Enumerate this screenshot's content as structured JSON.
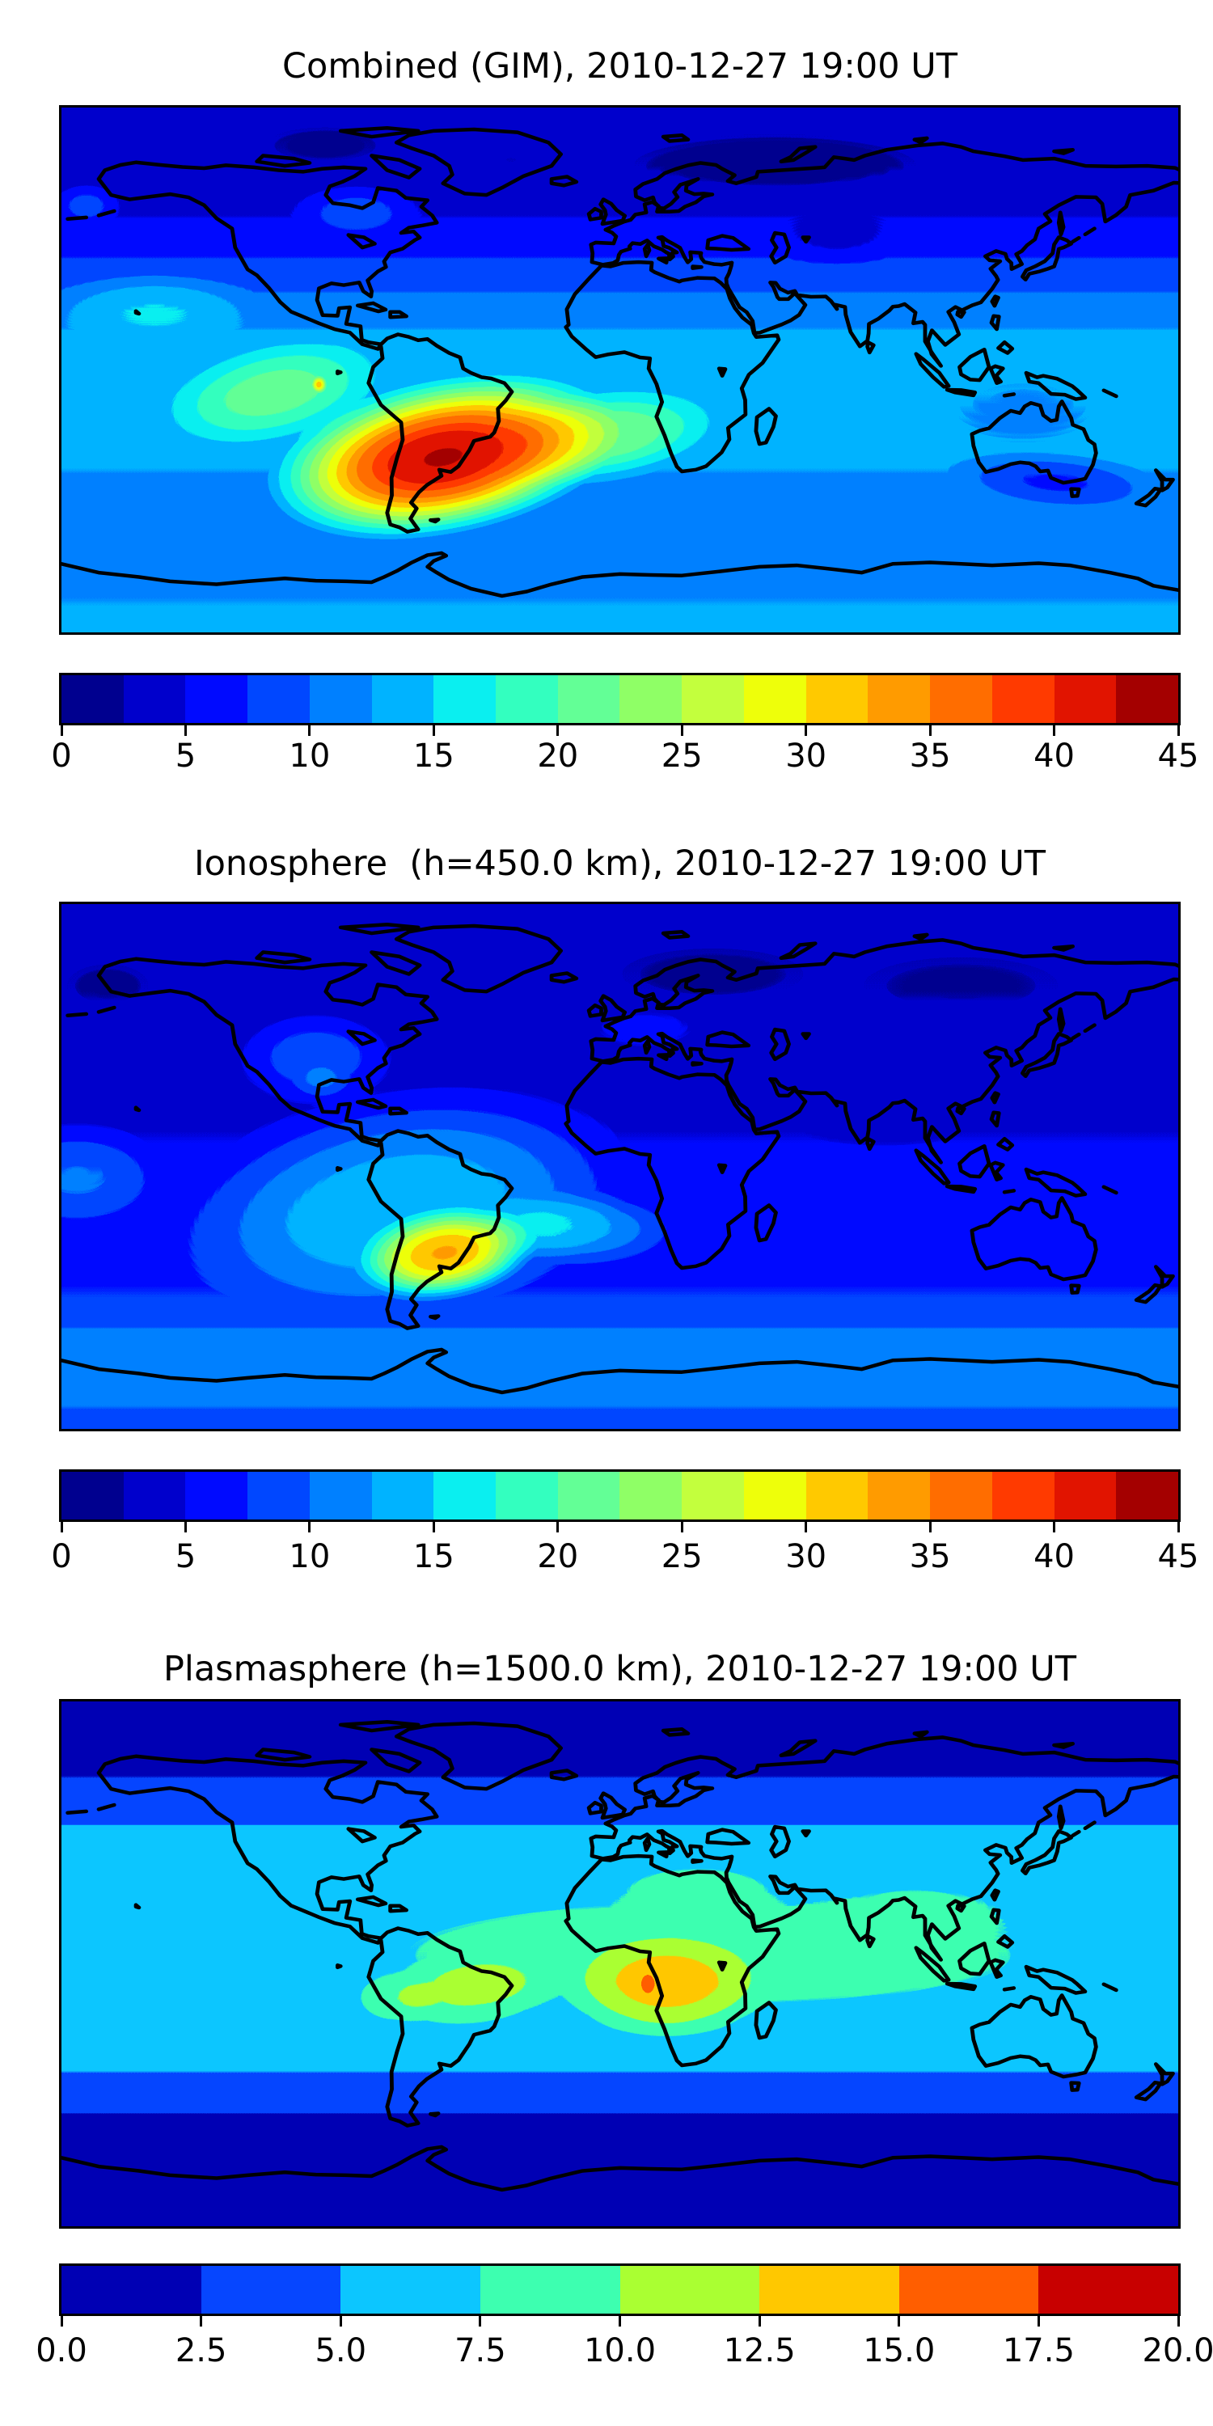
{
  "figure": {
    "background": "#ffffff",
    "border_color": "#000000",
    "coastline_color": "#000000"
  },
  "chart_data": [
    {
      "type": "heatmap",
      "subtype": "filled-contour-world-map",
      "title": "Combined (GIM), 2010-12-27 19:00 UT",
      "projection": "equirectangular, lon -180..180, lat -90..90",
      "vmin": 0,
      "vmax": 45,
      "level_step": 2.5,
      "colorbar": {
        "ticks": [
          0,
          5,
          10,
          15,
          20,
          25,
          30,
          35,
          40,
          45
        ],
        "tick_labels": [
          "0",
          "5",
          "10",
          "15",
          "20",
          "25",
          "30",
          "35",
          "40",
          "45"
        ],
        "colors": [
          "#00008F",
          "#0000CC",
          "#000AFF",
          "#0047FF",
          "#0080FF",
          "#00B3FF",
          "#0AEFF0",
          "#33FFBF",
          "#63FF96",
          "#8FFF66",
          "#C3FF3D",
          "#EEFF0A",
          "#FFC900",
          "#FF9B00",
          "#FF6D00",
          "#FF3A00",
          "#E11400",
          "#A40000"
        ]
      },
      "peak": {
        "lon": -57,
        "lat": -30,
        "value": 44,
        "note": "dark-red equatorial-anomaly maximum over southern South America"
      },
      "field": {
        "lat_profile": [
          [
            90,
            2.8
          ],
          [
            70,
            3.2
          ],
          [
            55,
            4.5
          ],
          [
            38,
            7.5
          ],
          [
            22,
            11
          ],
          [
            8,
            13.5
          ],
          [
            -8,
            14
          ],
          [
            -28,
            13
          ],
          [
            -45,
            11.5
          ],
          [
            -60,
            11
          ],
          [
            -72,
            12
          ],
          [
            -90,
            13
          ]
        ],
        "blobs": [
          {
            "lon": -57,
            "lat": -30,
            "rx": 58,
            "ry": 27,
            "rot": -12,
            "a": 0.95
          },
          {
            "lon": -8,
            "lat": -23,
            "rx": 42,
            "ry": 16,
            "rot": -8,
            "a": 0.3
          },
          {
            "lon": -112,
            "lat": -8,
            "rx": 38,
            "ry": 18,
            "rot": -15,
            "a": 0.25
          },
          {
            "lon": -97,
            "lat": -5,
            "rx": 2.5,
            "ry": 3,
            "rot": 0,
            "a": 0.45
          },
          {
            "lon": -150,
            "lat": 22,
            "rx": 35,
            "ry": 13,
            "rot": 0,
            "a": 0.12
          },
          {
            "lon": -172,
            "lat": 57,
            "rx": 12,
            "ry": 8,
            "rot": 0,
            "a": 0.1
          },
          {
            "lon": -85,
            "lat": 55,
            "rx": 22,
            "ry": 10,
            "rot": 0,
            "a": 0.1
          }
        ],
        "dark_blobs": [
          {
            "lon": 50,
            "lat": 70,
            "rx": 60,
            "ry": 13,
            "rot": 0,
            "a": 0.45
          },
          {
            "lon": 70,
            "lat": 45,
            "rx": 22,
            "ry": 10,
            "rot": 0,
            "a": 0.32
          },
          {
            "lon": -95,
            "lat": 77,
            "rx": 25,
            "ry": 8,
            "rot": 0,
            "a": 0.3
          },
          {
            "lon": 140,
            "lat": -38,
            "rx": 35,
            "ry": 10,
            "rot": 5,
            "a": 0.42
          },
          {
            "lon": 130,
            "lat": -12,
            "rx": 40,
            "ry": 18,
            "rot": 0,
            "a": 0.12
          },
          {
            "lon": -35,
            "lat": 72,
            "rx": 22,
            "ry": 9,
            "rot": 0,
            "a": 0.15
          }
        ]
      }
    },
    {
      "type": "heatmap",
      "subtype": "filled-contour-world-map",
      "title": "Ionosphere  (h=450.0 km), 2010-12-27 19:00 UT",
      "projection": "equirectangular, lon -180..180, lat -90..90",
      "vmin": 0,
      "vmax": 45,
      "level_step": 2.5,
      "colorbar": {
        "ticks": [
          0,
          5,
          10,
          15,
          20,
          25,
          30,
          35,
          40,
          45
        ],
        "tick_labels": [
          "0",
          "5",
          "10",
          "15",
          "20",
          "25",
          "30",
          "35",
          "40",
          "45"
        ],
        "colors": [
          "#00008F",
          "#0000CC",
          "#000AFF",
          "#0047FF",
          "#0080FF",
          "#00B3FF",
          "#0AEFF0",
          "#33FFBF",
          "#63FF96",
          "#8FFF66",
          "#C3FF3D",
          "#EEFF0A",
          "#FFC900",
          "#FF9B00",
          "#FF6D00",
          "#FF3A00",
          "#E11400",
          "#A40000"
        ]
      },
      "peak": {
        "lon": -56,
        "lat": -30,
        "value": 33,
        "note": "small orange maximum over Uruguay / southern Brazil"
      },
      "field": {
        "lat_profile": [
          [
            90,
            2.8
          ],
          [
            60,
            3
          ],
          [
            40,
            4
          ],
          [
            20,
            4.5
          ],
          [
            0,
            5.5
          ],
          [
            -20,
            6.5
          ],
          [
            -45,
            7.5
          ],
          [
            -58,
            10.5
          ],
          [
            -70,
            12
          ],
          [
            -82,
            10
          ],
          [
            -90,
            9
          ]
        ],
        "blobs": [
          {
            "lon": -70,
            "lat": -12,
            "rx": 75,
            "ry": 40,
            "rot": -10,
            "a": 0.22
          },
          {
            "lon": -56,
            "lat": -30,
            "rx": 30,
            "ry": 16,
            "rot": -10,
            "a": 0.64
          },
          {
            "lon": -15,
            "lat": -21,
            "rx": 33,
            "ry": 13,
            "rot": 0,
            "a": 0.18
          },
          {
            "lon": -175,
            "lat": -3,
            "rx": 30,
            "ry": 18,
            "rot": 0,
            "a": 0.12
          },
          {
            "lon": -98,
            "lat": 38,
            "rx": 28,
            "ry": 18,
            "rot": 0,
            "a": 0.12
          },
          {
            "lon": -96,
            "lat": 29,
            "rx": 10,
            "ry": 7,
            "rot": 0,
            "a": 0.08
          },
          {
            "lon": 8,
            "lat": 48,
            "rx": 25,
            "ry": 10,
            "rot": 0,
            "a": 0.05
          }
        ],
        "dark_blobs": [
          {
            "lon": 85,
            "lat": 32,
            "rx": 55,
            "ry": 26,
            "rot": 0,
            "a": 0.3
          },
          {
            "lon": 30,
            "lat": 66,
            "rx": 40,
            "ry": 12,
            "rot": 0,
            "a": 0.25
          },
          {
            "lon": 110,
            "lat": 62,
            "rx": 45,
            "ry": 14,
            "rot": 0,
            "a": 0.22
          },
          {
            "lon": -165,
            "lat": 62,
            "rx": 18,
            "ry": 10,
            "rot": 0,
            "a": 0.25
          },
          {
            "lon": 135,
            "lat": -28,
            "rx": 28,
            "ry": 14,
            "rot": 0,
            "a": 0.22
          }
        ]
      }
    },
    {
      "type": "heatmap",
      "subtype": "filled-contour-world-map",
      "title": "Plasmasphere (h=1500.0 km), 2010-12-27 19:00 UT",
      "projection": "equirectangular, lon -180..180, lat -90..90",
      "vmin": 0,
      "vmax": 20,
      "level_step": 2.5,
      "colorbar": {
        "ticks": [
          0.0,
          2.5,
          5.0,
          7.5,
          10.0,
          12.5,
          15.0,
          17.5,
          20.0
        ],
        "tick_labels": [
          "0.0",
          "2.5",
          "5.0",
          "7.5",
          "10.0",
          "12.5",
          "15.0",
          "17.5",
          "20.0"
        ],
        "colors": [
          "#0000B4",
          "#0646FF",
          "#0CC6FF",
          "#3DFFB0",
          "#AAFF32",
          "#FFC800",
          "#FF5E00",
          "#C80000"
        ]
      },
      "peak": {
        "lon": 9,
        "lat": -7,
        "value": 17,
        "note": "small red-orange maximum over Gabon/Angola; broad equatorial band structure"
      },
      "field": {
        "lat_profile": [
          [
            90,
            1.2
          ],
          [
            70,
            1.9
          ],
          [
            55,
            3.4
          ],
          [
            45,
            5.6
          ],
          [
            33,
            6.4
          ],
          [
            18,
            7.0
          ],
          [
            5,
            6.9
          ],
          [
            -8,
            6.8
          ],
          [
            -22,
            6.4
          ],
          [
            -32,
            5.4
          ],
          [
            -44,
            4.4
          ],
          [
            -52,
            2.3
          ],
          [
            -70,
            1.7
          ],
          [
            -90,
            1.3
          ]
        ],
        "blobs": [
          {
            "lon": 30,
            "lat": 3,
            "rx": 120,
            "ry": 22,
            "rot": 0,
            "a": 0.17
          },
          {
            "lon": -48,
            "lat": -9,
            "rx": 30,
            "ry": 14,
            "rot": -6,
            "a": 0.3
          },
          {
            "lon": -72,
            "lat": -12,
            "rx": 15,
            "ry": 10,
            "rot": 0,
            "a": 0.18
          },
          {
            "lon": 15,
            "lat": -8,
            "rx": 34,
            "ry": 20,
            "rot": 0,
            "a": 0.48
          },
          {
            "lon": 9,
            "lat": -7,
            "rx": 3,
            "ry": 4.5,
            "rot": 0,
            "a": 0.52
          },
          {
            "lon": 95,
            "lat": 18,
            "rx": 40,
            "ry": 14,
            "rot": 0,
            "a": 0.08
          },
          {
            "lon": 25,
            "lat": 25,
            "rx": 32,
            "ry": 12,
            "rot": 0,
            "a": 0.14
          }
        ],
        "dark_blobs": []
      }
    }
  ]
}
